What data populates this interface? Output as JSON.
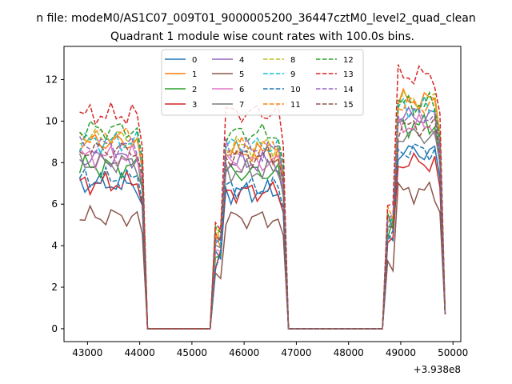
{
  "figure": {
    "suptitle": "n file: modeM0/AS1C07_009T01_9000005200_36447cztM0_level2_quad_clean"
  },
  "chart_data": {
    "type": "line",
    "title": "Quadrant 1 module wise count rates with 100.0s bins.",
    "xlabel": "",
    "ylabel": "",
    "x_offset_label": "+3.938e8",
    "xlim": [
      42550,
      50150
    ],
    "ylim": [
      -0.62,
      13.6
    ],
    "xticks": [
      43000,
      44000,
      45000,
      46000,
      47000,
      48000,
      49000,
      50000
    ],
    "yticks": [
      0,
      2,
      4,
      6,
      8,
      10,
      12
    ],
    "grid": false,
    "legend": {
      "placement": "top-center",
      "columns": 4
    },
    "segments": [
      {
        "start": 42850,
        "end": 44050
      },
      {
        "start": 45450,
        "end": 46750
      },
      {
        "start": 48750,
        "end": 49750
      }
    ],
    "series": [
      {
        "name": "0",
        "color": "#1f77b4",
        "dash": "solid",
        "level": [
          7.0,
          6.6,
          8.5
        ]
      },
      {
        "name": "1",
        "color": "#ff7f0e",
        "dash": "solid",
        "level": [
          9.0,
          8.5,
          11.0
        ]
      },
      {
        "name": "2",
        "color": "#2ca02c",
        "dash": "solid",
        "level": [
          7.8,
          7.5,
          9.8
        ]
      },
      {
        "name": "3",
        "color": "#d62728",
        "dash": "solid",
        "level": [
          7.0,
          6.6,
          8.0
        ]
      },
      {
        "name": "4",
        "color": "#9467bd",
        "dash": "solid",
        "level": [
          8.2,
          8.0,
          10.2
        ]
      },
      {
        "name": "5",
        "color": "#8c564b",
        "dash": "solid",
        "level": [
          5.4,
          5.3,
          6.6
        ]
      },
      {
        "name": "6",
        "color": "#e377c2",
        "dash": "solid",
        "level": [
          8.3,
          8.0,
          9.8
        ]
      },
      {
        "name": "7",
        "color": "#7f7f7f",
        "dash": "solid",
        "level": [
          8.0,
          7.6,
          9.3
        ]
      },
      {
        "name": "8",
        "color": "#bcbd22",
        "dash": "dashed",
        "level": [
          9.2,
          8.8,
          11.0
        ]
      },
      {
        "name": "9",
        "color": "#17becf",
        "dash": "dashed",
        "level": [
          9.0,
          8.8,
          10.6
        ]
      },
      {
        "name": "10",
        "color": "#1f77b4",
        "dash": "dashed",
        "level": [
          7.2,
          6.8,
          8.6
        ]
      },
      {
        "name": "11",
        "color": "#ff7f0e",
        "dash": "dashed",
        "level": [
          9.3,
          8.7,
          10.8
        ]
      },
      {
        "name": "12",
        "color": "#2ca02c",
        "dash": "dashed",
        "level": [
          9.6,
          9.4,
          10.8
        ]
      },
      {
        "name": "13",
        "color": "#d62728",
        "dash": "dashed",
        "level": [
          10.3,
          10.4,
          12.2
        ]
      },
      {
        "name": "14",
        "color": "#9467bd",
        "dash": "dashed",
        "level": [
          8.8,
          8.6,
          10.3
        ]
      },
      {
        "name": "15",
        "color": "#8c564b",
        "dash": "dashed",
        "level": [
          8.6,
          8.3,
          9.7
        ]
      }
    ]
  }
}
